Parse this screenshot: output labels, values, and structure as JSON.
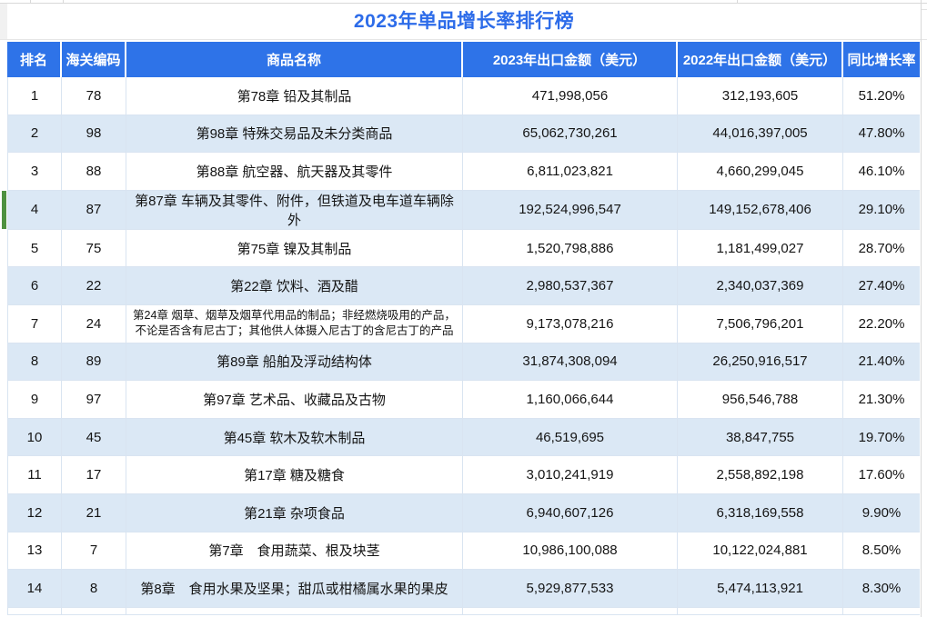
{
  "title": "2023年单品增长率排行榜",
  "colors": {
    "header-bg": "#2e73e8",
    "title-color": "#2d6ce9",
    "row-alt-bg": "#dbe8f5",
    "cell-border": "#d9e4f1",
    "selection-color": "#4e9140",
    "grid-line": "#d9d9d9"
  },
  "selection": {
    "selected_rank": "4",
    "indicator_color": "#4e9140"
  },
  "chart_data": {
    "type": "table",
    "title": "2023年单品增长率排行榜",
    "columns": [
      "排名",
      "海关编码",
      "商品名称",
      "2023年出口金额（美元）",
      "2022年出口金额（美元）",
      "同比增长率"
    ],
    "rows": [
      [
        "1",
        "78",
        "第78章 铅及其制品",
        "471,998,056",
        "312,193,605",
        "51.20%"
      ],
      [
        "2",
        "98",
        "第98章 特殊交易品及未分类商品",
        "65,062,730,261",
        "44,016,397,005",
        "47.80%"
      ],
      [
        "3",
        "88",
        "第88章 航空器、航天器及其零件",
        "6,811,023,821",
        "4,660,299,045",
        "46.10%"
      ],
      [
        "4",
        "87",
        "第87章 车辆及其零件、附件，但铁道及电车道车辆除外",
        "192,524,996,547",
        "149,152,678,406",
        "29.10%"
      ],
      [
        "5",
        "75",
        "第75章 镍及其制品",
        "1,520,798,886",
        "1,181,499,027",
        "28.70%"
      ],
      [
        "6",
        "22",
        "第22章 饮料、酒及醋",
        "2,980,537,367",
        "2,340,037,369",
        "27.40%"
      ],
      [
        "7",
        "24",
        "第24章 烟草、烟草及烟草代用品的制品；非经燃烧吸用的产品，不论是否含有尼古丁；其他供人体摄入尼古丁的含尼古丁的产品",
        "9,173,078,216",
        "7,506,796,201",
        "22.20%"
      ],
      [
        "8",
        "89",
        "第89章 船舶及浮动结构体",
        "31,874,308,094",
        "26,250,916,517",
        "21.40%"
      ],
      [
        "9",
        "97",
        "第97章 艺术品、收藏品及古物",
        "1,160,066,644",
        "956,546,788",
        "21.30%"
      ],
      [
        "10",
        "45",
        "第45章 软木及软木制品",
        "46,519,695",
        "38,847,755",
        "19.70%"
      ],
      [
        "11",
        "17",
        "第17章 糖及糖食",
        "3,010,241,919",
        "2,558,892,198",
        "17.60%"
      ],
      [
        "12",
        "21",
        "第21章 杂项食品",
        "6,940,607,126",
        "6,318,169,558",
        "9.90%"
      ],
      [
        "13",
        "7",
        "第7章　食用蔬菜、根及块茎",
        "10,986,100,088",
        "10,122,024,881",
        "8.50%"
      ],
      [
        "14",
        "8",
        "第8章　食用水果及坚果；甜瓜或柑橘属水果的果皮",
        "5,929,877,533",
        "5,474,113,921",
        "8.30%"
      ]
    ]
  }
}
